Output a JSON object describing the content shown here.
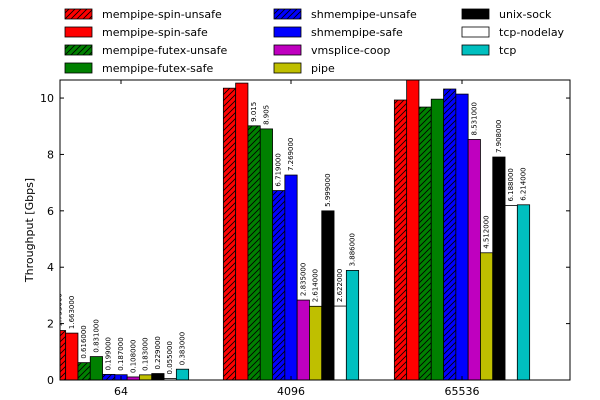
{
  "chart_data": {
    "type": "bar",
    "title": "",
    "xlabel": "",
    "ylabel": "Throughput [Gbps]",
    "ylim": [
      0,
      10.64
    ],
    "yticks": [
      "0",
      "2",
      "4",
      "6",
      "8",
      "10"
    ],
    "grid": false,
    "legend_position": "top (above plot, 3 columns)",
    "categories": [
      "64",
      "4096",
      "65536"
    ],
    "series": [
      {
        "name": "mempipe-spin-unsafe",
        "color": "#ff0000",
        "hatch": true,
        "values": [
          1.755,
          10.35,
          9.93
        ],
        "labels": [
          "1.755000",
          "",
          ""
        ]
      },
      {
        "name": "mempipe-spin-safe",
        "color": "#ff0000",
        "hatch": false,
        "values": [
          1.663,
          10.53,
          10.7
        ],
        "labels": [
          "1.663000",
          "",
          ""
        ]
      },
      {
        "name": "mempipe-futex-unsafe",
        "color": "#008000",
        "hatch": true,
        "values": [
          0.616,
          9.015,
          9.68
        ],
        "labels": [
          "0.616000",
          "9.015",
          ""
        ]
      },
      {
        "name": "mempipe-futex-safe",
        "color": "#008000",
        "hatch": false,
        "values": [
          0.831,
          8.905,
          9.96
        ],
        "labels": [
          "0.831000",
          "8.905",
          ""
        ]
      },
      {
        "name": "shmempipe-unsafe",
        "color": "#0000ff",
        "hatch": true,
        "values": [
          0.199,
          6.719,
          10.32
        ],
        "labels": [
          "0.199000",
          "6.719000",
          ""
        ]
      },
      {
        "name": "shmempipe-safe",
        "color": "#0000ff",
        "hatch": false,
        "values": [
          0.187,
          7.269,
          10.14
        ],
        "labels": [
          "0.187000",
          "7.269000",
          ""
        ]
      },
      {
        "name": "vmsplice-coop",
        "color": "#bf00bf",
        "hatch": false,
        "values": [
          0.108,
          2.835,
          8.531
        ],
        "labels": [
          "0.108000",
          "2.835000",
          "8.531000"
        ]
      },
      {
        "name": "pipe",
        "color": "#bfbf00",
        "hatch": false,
        "values": [
          0.183,
          2.614,
          4.512
        ],
        "labels": [
          "0.183000",
          "2.614000",
          "4.512000"
        ]
      },
      {
        "name": "unix-sock",
        "color": "#000000",
        "hatch": false,
        "values": [
          0.229,
          5.999,
          7.908
        ],
        "labels": [
          "0.229000",
          "5.999000",
          "7.908000"
        ]
      },
      {
        "name": "tcp-nodelay",
        "color": "#ffffff",
        "hatch": false,
        "values": [
          0.055,
          2.622,
          6.188
        ],
        "labels": [
          "0.055000",
          "2.622000",
          "6.188000"
        ]
      },
      {
        "name": "tcp",
        "color": "#00bfbf",
        "hatch": false,
        "values": [
          0.383,
          3.886,
          6.214
        ],
        "labels": [
          "0.383000",
          "3.886000",
          "6.214000"
        ]
      }
    ]
  }
}
